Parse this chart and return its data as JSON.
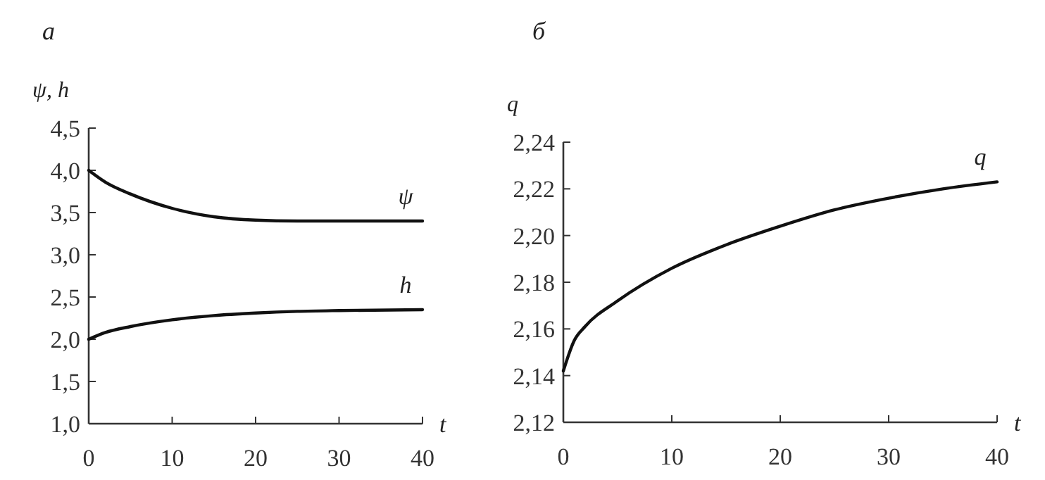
{
  "chart_data": [
    {
      "type": "line",
      "title": "а",
      "xlabel": "t",
      "ylabel": "ψ, h",
      "x": [
        0,
        2,
        5,
        10,
        15,
        20,
        25,
        30,
        40
      ],
      "series": [
        {
          "name": "ψ",
          "color": "#111111",
          "values": [
            4.0,
            3.86,
            3.72,
            3.55,
            3.45,
            3.41,
            3.4,
            3.4,
            3.4
          ]
        },
        {
          "name": "h",
          "color": "#111111",
          "values": [
            2.0,
            2.08,
            2.15,
            2.23,
            2.28,
            2.31,
            2.33,
            2.34,
            2.35
          ]
        }
      ],
      "xlim": [
        0,
        40
      ],
      "xticks": [
        0,
        10,
        20,
        30,
        40
      ],
      "ylim": [
        1.0,
        4.5
      ],
      "yticks": [
        {
          "value": 1.0,
          "label": "1,0"
        },
        {
          "value": 1.5,
          "label": "1,5"
        },
        {
          "value": 2.0,
          "label": "2,0"
        },
        {
          "value": 2.5,
          "label": "2,5"
        },
        {
          "value": 3.0,
          "label": "3,0"
        },
        {
          "value": 3.5,
          "label": "3,5"
        },
        {
          "value": 4.0,
          "label": "4,0"
        },
        {
          "value": 4.5,
          "label": "4,5"
        }
      ],
      "grid": false,
      "legend": false,
      "marker": "none",
      "line_style": "solid"
    },
    {
      "type": "line",
      "title": "б",
      "xlabel": "t",
      "ylabel": "q",
      "x": [
        0,
        1,
        2,
        5,
        10,
        15,
        20,
        25,
        30,
        35,
        40
      ],
      "series": [
        {
          "name": "q",
          "color": "#111111",
          "values": [
            2.142,
            2.155,
            2.161,
            2.172,
            2.186,
            2.196,
            2.204,
            2.211,
            2.216,
            2.22,
            2.223
          ]
        }
      ],
      "xlim": [
        0,
        40
      ],
      "xticks": [
        0,
        10,
        20,
        30,
        40
      ],
      "ylim": [
        2.12,
        2.24
      ],
      "yticks": [
        {
          "value": 2.12,
          "label": "2,12"
        },
        {
          "value": 2.14,
          "label": "2,14"
        },
        {
          "value": 2.16,
          "label": "2,16"
        },
        {
          "value": 2.18,
          "label": "2,18"
        },
        {
          "value": 2.2,
          "label": "2,20"
        },
        {
          "value": 2.22,
          "label": "2,22"
        },
        {
          "value": 2.24,
          "label": "2,24"
        }
      ],
      "grid": false,
      "legend": false,
      "marker": "none",
      "line_style": "solid"
    }
  ]
}
